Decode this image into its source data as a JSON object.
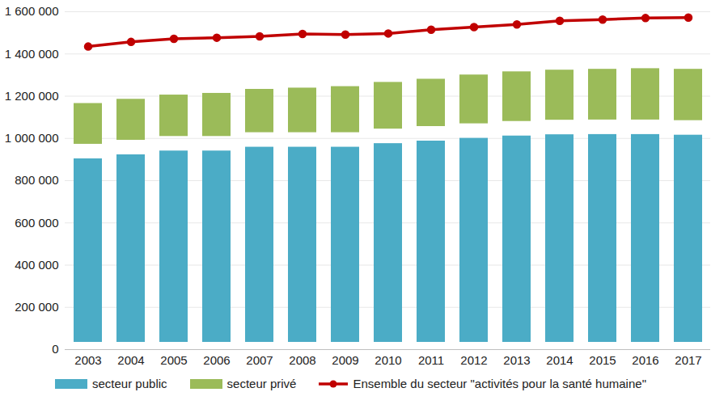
{
  "chart_data": {
    "type": "bar",
    "stacked": true,
    "grid": true,
    "legend": "bottom",
    "categories": [
      "2003",
      "2004",
      "2005",
      "2006",
      "2007",
      "2008",
      "2009",
      "2010",
      "2011",
      "2012",
      "2013",
      "2014",
      "2015",
      "2016",
      "2017"
    ],
    "ylim": [
      0,
      1600000
    ],
    "yticks": [
      0,
      {
        "value": 200000,
        "label": "200 000"
      },
      {
        "value": 400000,
        "label": "400 000"
      },
      {
        "value": 600000,
        "label": "600 000"
      },
      {
        "value": 800000,
        "label": "800 000"
      },
      {
        "value": 1000000,
        "label": "1 000 000"
      },
      {
        "value": 1200000,
        "label": "1 200 000"
      },
      {
        "value": 1400000,
        "label": "1 400 000"
      },
      {
        "value": 1600000,
        "label": "1 600 000"
      }
    ],
    "series": [
      {
        "name": "secteur public",
        "type": "bar",
        "color": "#4bacc6",
        "values": [
          938000,
          957000,
          975000,
          975000,
          993000,
          993000,
          993000,
          1010000,
          1022000,
          1035000,
          1046000,
          1052000,
          1053000,
          1053000,
          1050000
        ]
      },
      {
        "name": "secteur privé",
        "type": "bar",
        "color": "#9bbb59",
        "values": [
          262000,
          263000,
          265000,
          273000,
          274000,
          280000,
          287000,
          290000,
          293000,
          300000,
          304000,
          306000,
          309000,
          312000,
          312000
        ]
      },
      {
        "name": "Ensemble du secteur \"activités pour la santé humaine\"",
        "type": "line",
        "color": "#c00000",
        "marker": "circle",
        "values": [
          1435000,
          1457000,
          1472000,
          1477000,
          1483000,
          1495000,
          1492000,
          1497000,
          1515000,
          1527000,
          1540000,
          1557000,
          1563000,
          1570000,
          1572000
        ]
      }
    ]
  }
}
